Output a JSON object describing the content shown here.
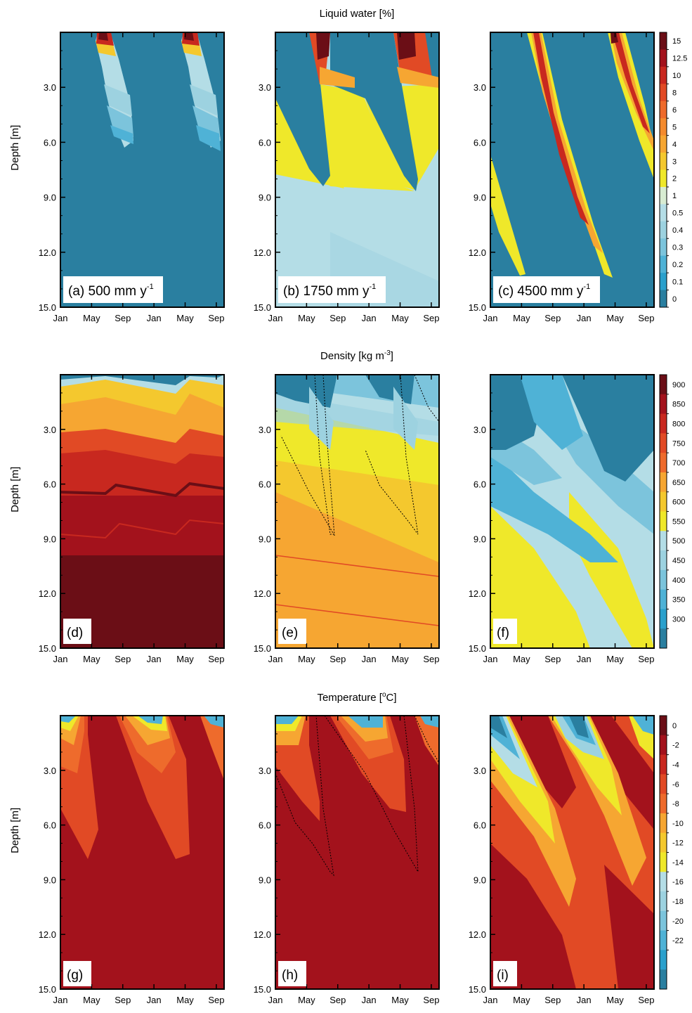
{
  "figure": {
    "row_titles": [
      {
        "main": "Liquid water [%]",
        "sup": ""
      },
      {
        "main": "Density [kg m",
        "sup": "-3",
        "tail": "]"
      },
      {
        "main": "Temperature [",
        "sup": "o",
        "tail": "C]"
      }
    ],
    "panel_labels": [
      "(a) 500 mm y",
      "(b) 1750 mm y",
      "(c) 4500 mm y",
      "(d)",
      "(e)",
      "(f)",
      "(g)",
      "(h)",
      "(i)"
    ],
    "panel_label_sup": "-1"
  },
  "chart_data": [
    {
      "type": "heatmap",
      "row": "Liquid water",
      "title": "Liquid water [%]",
      "ylabel": "Depth [m]",
      "ylim": [
        0,
        15
      ],
      "y_reversed": true,
      "yticks": [
        "3.0",
        "6.0",
        "9.0",
        "12.0",
        "15.0"
      ],
      "xticks": [
        "Jan",
        "May",
        "Sep",
        "Jan",
        "May",
        "Sep"
      ],
      "colorbar_levels": [
        "15",
        "12.5",
        "10",
        "8",
        "6",
        "5",
        "4",
        "3",
        "2",
        "1",
        "0.5",
        "0.4",
        "0.3",
        "0.2",
        "0.1",
        "0"
      ],
      "colorbar_colors": [
        "#6b0e16",
        "#a3121c",
        "#c8281f",
        "#e14a25",
        "#ee6b2c",
        "#f48b2e",
        "#f6a632",
        "#f4c82e",
        "#efe82a",
        "#d8ecd2",
        "#b4dde6",
        "#9dd2e0",
        "#7cc4dc",
        "#4fb2d6",
        "#2aa0cc",
        "#2a7fa0"
      ],
      "panels": [
        {
          "label": "(a) 500 mm y-1",
          "accumulation_mm_per_y": 500
        },
        {
          "label": "(b) 1750 mm y-1",
          "accumulation_mm_per_y": 1750
        },
        {
          "label": "(c) 4500 mm y-1",
          "accumulation_mm_per_y": 4500
        }
      ]
    },
    {
      "type": "heatmap",
      "row": "Density",
      "title": "Density [kg m-3]",
      "ylabel": "Depth [m]",
      "ylim": [
        0,
        15
      ],
      "y_reversed": true,
      "yticks": [
        "3.0",
        "6.0",
        "9.0",
        "12.0",
        "15.0"
      ],
      "xticks": [
        "Jan",
        "May",
        "Sep",
        "Jan",
        "May",
        "Sep"
      ],
      "colorbar_levels": [
        "900",
        "850",
        "800",
        "750",
        "700",
        "650",
        "600",
        "550",
        "500",
        "450",
        "400",
        "350",
        "300"
      ],
      "colorbar_colors": [
        "#6b0e16",
        "#a3121c",
        "#c8281f",
        "#e14a25",
        "#ee6b2c",
        "#f6a632",
        "#f4c82e",
        "#efe82a",
        "#b4dde6",
        "#9dd2e0",
        "#7cc4dc",
        "#4fb2d6",
        "#2aa0cc",
        "#2a7fa0"
      ],
      "panels": [
        {
          "label": "(d)"
        },
        {
          "label": "(e)"
        },
        {
          "label": "(f)"
        }
      ]
    },
    {
      "type": "heatmap",
      "row": "Temperature",
      "title": "Temperature [oC]",
      "ylabel": "Depth [m]",
      "ylim": [
        0,
        15
      ],
      "y_reversed": true,
      "yticks": [
        "3.0",
        "6.0",
        "9.0",
        "12.0",
        "15.0"
      ],
      "xticks": [
        "Jan",
        "May",
        "Sep",
        "Jan",
        "May",
        "Sep"
      ],
      "colorbar_levels": [
        "0",
        "-2",
        "-4",
        "-6",
        "-8",
        "-10",
        "-12",
        "-14",
        "-16",
        "-18",
        "-20",
        "-22"
      ],
      "colorbar_colors": [
        "#6b0e16",
        "#a3121c",
        "#c8281f",
        "#e14a25",
        "#ee6b2c",
        "#f6a632",
        "#f4c82e",
        "#efe82a",
        "#b4dde6",
        "#9dd2e0",
        "#7cc4dc",
        "#4fb2d6",
        "#2aa0cc",
        "#2a7fa0"
      ],
      "panels": [
        {
          "label": "(g)"
        },
        {
          "label": "(h)"
        },
        {
          "label": "(i)"
        }
      ]
    }
  ]
}
